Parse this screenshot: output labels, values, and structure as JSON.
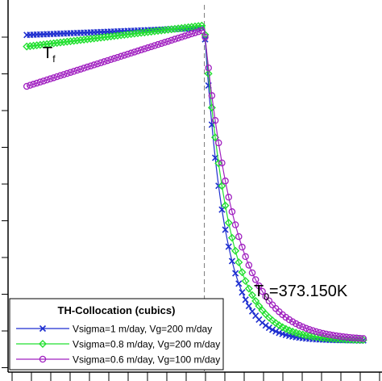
{
  "chart_data": {
    "type": "line",
    "title": "",
    "xlabel": "",
    "ylabel": "",
    "xlim": [
      0,
      100
    ],
    "ylim": [
      0,
      100
    ],
    "grid": false,
    "legend_placement": "bottom-left",
    "legend_title": "TH-Collocation (cubics)",
    "annotations": {
      "tf": {
        "base": "T",
        "sub": "f"
      },
      "t0": {
        "base": "T",
        "sub": "0",
        "rest": "=373.150K"
      }
    },
    "series": [
      {
        "name": "Vsigma=1 m/day, Vg=200 m/day",
        "color": "#1f2fd0",
        "marker": "x",
        "plateau": 92.5,
        "base": 8.5,
        "front": 52.5,
        "tau": 5.4,
        "rise": 0.2
      },
      {
        "name": "Vsigma=0.8 m/day, Vg=200 m/day",
        "color": "#22e030",
        "marker": "diamond",
        "plateau": 93.2,
        "base": 8.5,
        "front": 52.5,
        "tau": 6.6,
        "rise": 0.6
      },
      {
        "name": "Vsigma=0.6 m/day, Vg=100 m/day",
        "color": "#a020c0",
        "marker": "circle",
        "plateau": 92.0,
        "base": 8.5,
        "front": 52.5,
        "tau": 8.4,
        "rise": 1.6
      }
    ]
  }
}
